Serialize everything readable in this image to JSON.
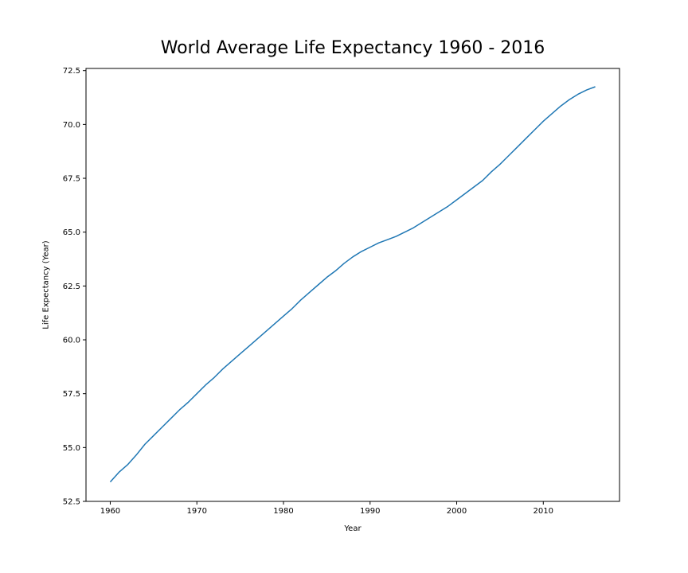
{
  "chart_data": {
    "type": "line",
    "title": "World Average Life Expectancy 1960 - 2016",
    "xlabel": "Year",
    "ylabel": "Life Expectancy (Year)",
    "xlim": [
      1957.2,
      2018.8
    ],
    "ylim": [
      52.5,
      72.6
    ],
    "xticks": [
      1960,
      1970,
      1980,
      1990,
      2000,
      2010
    ],
    "xtick_labels": [
      "1960",
      "1970",
      "1980",
      "1990",
      "2000",
      "2010"
    ],
    "yticks": [
      52.5,
      55.0,
      57.5,
      60.0,
      62.5,
      65.0,
      67.5,
      70.0,
      72.5
    ],
    "ytick_labels": [
      "52.5",
      "55.0",
      "57.5",
      "60.0",
      "62.5",
      "65.0",
      "67.5",
      "70.0",
      "72.5"
    ],
    "grid": false,
    "series": [
      {
        "color": "#1f77b4",
        "x": [
          1960,
          1961,
          1962,
          1963,
          1964,
          1965,
          1966,
          1967,
          1968,
          1969,
          1970,
          1971,
          1972,
          1973,
          1974,
          1975,
          1976,
          1977,
          1978,
          1979,
          1980,
          1981,
          1982,
          1983,
          1984,
          1985,
          1986,
          1987,
          1988,
          1989,
          1990,
          1991,
          1992,
          1993,
          1994,
          1995,
          1996,
          1997,
          1998,
          1999,
          2000,
          2001,
          2002,
          2003,
          2004,
          2005,
          2006,
          2007,
          2008,
          2009,
          2010,
          2011,
          2012,
          2013,
          2014,
          2015,
          2016
        ],
        "values": [
          53.4,
          53.85,
          54.2,
          54.65,
          55.15,
          55.55,
          55.95,
          56.35,
          56.75,
          57.1,
          57.5,
          57.9,
          58.25,
          58.65,
          59.0,
          59.35,
          59.7,
          60.05,
          60.4,
          60.75,
          61.1,
          61.45,
          61.85,
          62.2,
          62.55,
          62.9,
          63.2,
          63.55,
          63.85,
          64.1,
          64.3,
          64.5,
          64.65,
          64.8,
          65.0,
          65.2,
          65.45,
          65.7,
          65.95,
          66.2,
          66.5,
          66.8,
          67.1,
          67.4,
          67.8,
          68.15,
          68.55,
          68.95,
          69.35,
          69.75,
          70.15,
          70.5,
          70.85,
          71.15,
          71.4,
          71.6,
          71.75
        ]
      }
    ]
  }
}
